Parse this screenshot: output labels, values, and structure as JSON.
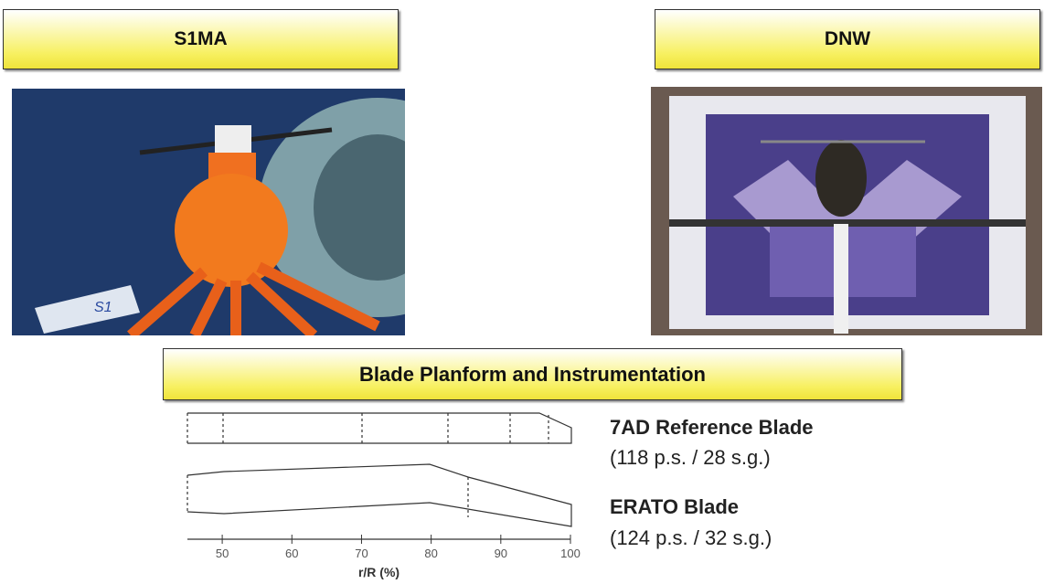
{
  "headers": [
    "S1MA",
    "DNW"
  ],
  "photos": [
    {
      "sign": "S1"
    }
  ],
  "section_title": "Blade Planform and Instrumentation",
  "blades": [
    {
      "name": "7AD Reference Blade",
      "detail": "(118 p.s. / 28 s.g.)"
    },
    {
      "name": "ERATO Blade",
      "detail": "(124 p.s. / 32 s.g.)"
    }
  ],
  "axis": {
    "label": "r/R (%)",
    "lim": [
      45,
      100
    ],
    "ticks": [
      50,
      60,
      70,
      80,
      90,
      100
    ]
  }
}
